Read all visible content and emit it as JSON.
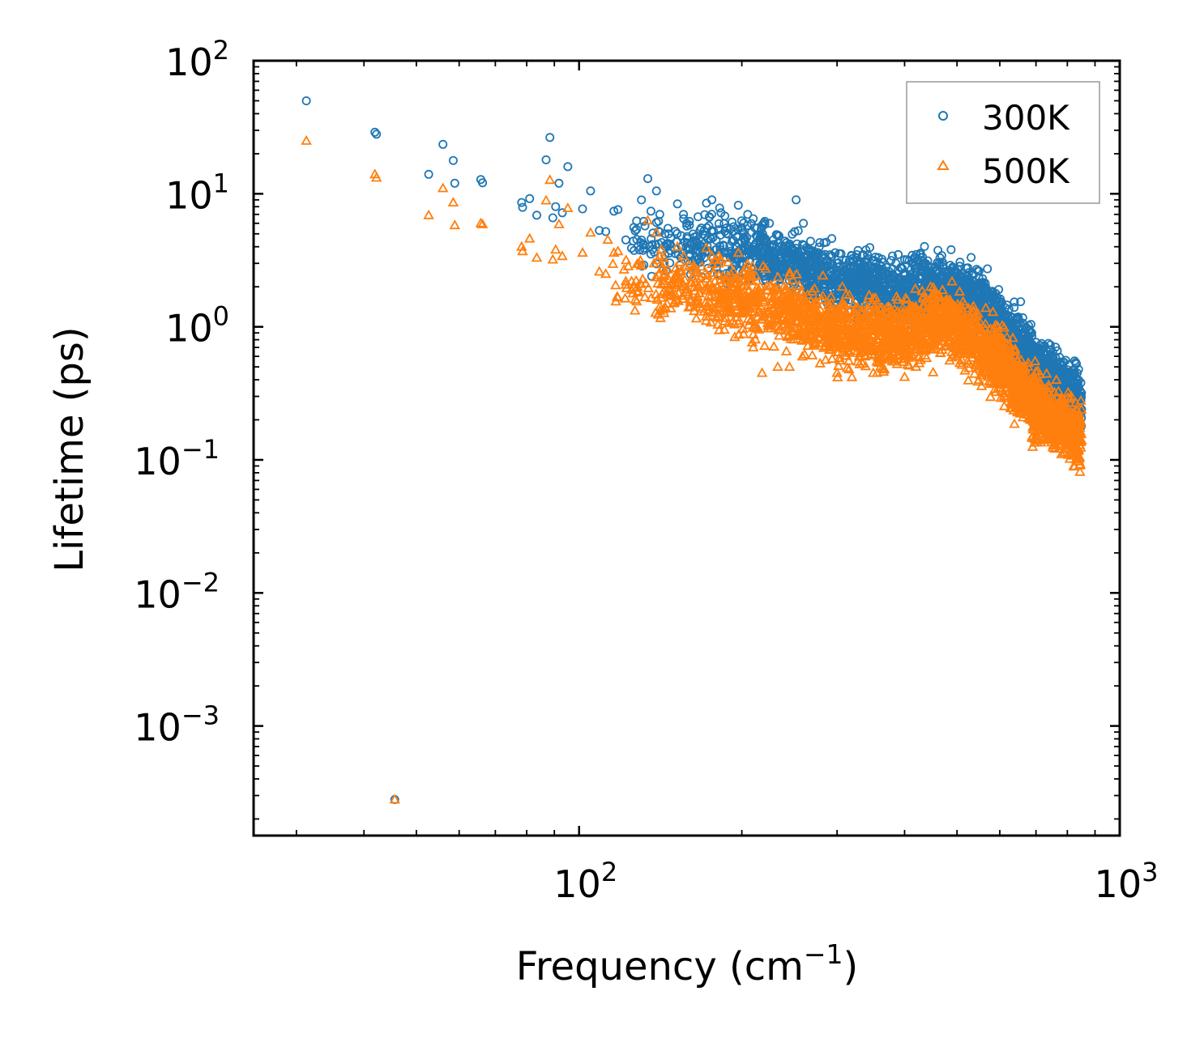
{
  "chart_data": {
    "type": "scatter",
    "xscale": "log",
    "yscale": "log",
    "xlabel": "Frequency (cm",
    "xlabel_sup": "−1",
    "xlabel_tail": ")",
    "ylabel": "Lifetime (ps)",
    "xlim": [
      25,
      1000
    ],
    "ylim": [
      0.00015,
      100
    ],
    "x_ticks": [
      {
        "value": 100,
        "base": "10",
        "exp": "2"
      },
      {
        "value": 1000,
        "base": "10",
        "exp": "3"
      }
    ],
    "y_ticks": [
      {
        "value": 100,
        "base": "10",
        "exp": "2"
      },
      {
        "value": 10,
        "base": "10",
        "exp": "1"
      },
      {
        "value": 1,
        "base": "10",
        "exp": "0"
      },
      {
        "value": 0.1,
        "base": "10",
        "exp": "−1"
      },
      {
        "value": 0.01,
        "base": "10",
        "exp": "−2"
      },
      {
        "value": 0.001,
        "base": "10",
        "exp": "−3"
      }
    ],
    "legend_position": "top-right",
    "series": [
      {
        "name": "300K",
        "color": "#1f77b4",
        "marker": "circle",
        "points": [
          [
            31.3,
            50
          ],
          [
            41.9,
            29
          ],
          [
            42.2,
            28
          ],
          [
            45.6,
            0.00028
          ],
          [
            52.7,
            14
          ],
          [
            56.0,
            23.5
          ],
          [
            58.5,
            17.8
          ],
          [
            58.9,
            12
          ],
          [
            65.8,
            12.8
          ],
          [
            66.3,
            12.1
          ],
          [
            78.3,
            8.6
          ],
          [
            78.6,
            7.9
          ],
          [
            81.0,
            9.2
          ],
          [
            83.5,
            6.9
          ],
          [
            86.9,
            18
          ],
          [
            88.3,
            26.5
          ],
          [
            89.4,
            6.6
          ],
          [
            90.5,
            8
          ],
          [
            91.8,
            12
          ],
          [
            93.1,
            7.2
          ],
          [
            95.3,
            16
          ],
          [
            101.5,
            7.7
          ],
          [
            105.0,
            10.5
          ],
          [
            109.0,
            5.3
          ],
          [
            112.0,
            5.2
          ],
          [
            116.0,
            7.4
          ],
          [
            118.0,
            7.6
          ],
          [
            122.0,
            4.5
          ],
          [
            125.0,
            3.9
          ],
          [
            130.0,
            4.3
          ],
          [
            134.0,
            13
          ],
          [
            139.0,
            10.5
          ],
          [
            141.0,
            7
          ],
          [
            146.0,
            5.5
          ],
          [
            152.0,
            8.4
          ],
          [
            156.0,
            7
          ],
          [
            160.0,
            6.2
          ],
          [
            165.0,
            4.8
          ],
          [
            172.0,
            8.5
          ],
          [
            176.0,
            9
          ],
          [
            183.0,
            7.2
          ],
          [
            186.0,
            6.8
          ],
          [
            193.0,
            5.2
          ],
          [
            197.0,
            8.2
          ],
          [
            205.0,
            7
          ],
          [
            210.0,
            6.5
          ],
          [
            218.0,
            5.8
          ],
          [
            225.0,
            6
          ],
          [
            233.0,
            4.9
          ],
          [
            245.0,
            4.2
          ],
          [
            252.0,
            9
          ],
          [
            260.0,
            6
          ],
          [
            268.0,
            4.4
          ],
          [
            285.0,
            3.5
          ],
          [
            300.0,
            3
          ],
          [
            315.0,
            2.6
          ],
          [
            330.0,
            3
          ],
          [
            350.0,
            2.6
          ],
          [
            370.0,
            2.8
          ],
          [
            400.0,
            3.2
          ],
          [
            420.0,
            2.6
          ],
          [
            430.0,
            2.9
          ],
          [
            465.0,
            3.3
          ],
          [
            480.0,
            2.3
          ],
          [
            520.0,
            2.4
          ],
          [
            560.0,
            1.8
          ],
          [
            600.0,
            1.3
          ],
          [
            620.0,
            1.0
          ],
          [
            650.0,
            0.8
          ],
          [
            680.0,
            0.62
          ],
          [
            690.0,
            0.19
          ],
          [
            720.0,
            0.45
          ],
          [
            760.0,
            0.35
          ],
          [
            800.0,
            0.3
          ],
          [
            830.0,
            0.27
          ],
          [
            850.0,
            0.24
          ]
        ]
      },
      {
        "name": "500K",
        "color": "#ff7f0e",
        "marker": "triangle",
        "points": [
          [
            31.3,
            25
          ],
          [
            41.9,
            14
          ],
          [
            42.2,
            13.2
          ],
          [
            45.6,
            0.00028
          ],
          [
            52.7,
            6.9
          ],
          [
            56.0,
            11
          ],
          [
            58.5,
            8.6
          ],
          [
            58.9,
            5.8
          ],
          [
            65.8,
            6
          ],
          [
            66.3,
            5.9
          ],
          [
            78.3,
            4
          ],
          [
            78.6,
            3.7
          ],
          [
            81.0,
            4.6
          ],
          [
            83.5,
            3.3
          ],
          [
            86.9,
            8.9
          ],
          [
            88.3,
            12.7
          ],
          [
            89.4,
            3.2
          ],
          [
            90.5,
            3.8
          ],
          [
            91.8,
            5.9
          ],
          [
            93.1,
            3.4
          ],
          [
            95.3,
            7.8
          ],
          [
            101.5,
            3.6
          ],
          [
            105.0,
            5.1
          ],
          [
            109.0,
            2.6
          ],
          [
            112.0,
            2.5
          ],
          [
            116.0,
            3.6
          ],
          [
            118.0,
            3.7
          ],
          [
            122.0,
            2.2
          ],
          [
            125.0,
            1.9
          ],
          [
            130.0,
            2.1
          ],
          [
            134.0,
            6.3
          ],
          [
            139.0,
            5.1
          ],
          [
            141.0,
            3.4
          ],
          [
            146.0,
            2.7
          ],
          [
            152.0,
            4
          ],
          [
            156.0,
            3.4
          ],
          [
            160.0,
            2.9
          ],
          [
            165.0,
            2.3
          ],
          [
            172.0,
            3.9
          ],
          [
            176.0,
            3.4
          ],
          [
            183.0,
            3.2
          ],
          [
            186.0,
            1.1
          ],
          [
            193.0,
            2.3
          ],
          [
            197.0,
            3.6
          ],
          [
            205.0,
            1.6
          ],
          [
            210.0,
            0.7
          ],
          [
            218.0,
            0.45
          ],
          [
            225.0,
            1.3
          ],
          [
            233.0,
            0.5
          ],
          [
            245.0,
            0.5
          ],
          [
            252.0,
            1.2
          ],
          [
            260.0,
            0.8
          ],
          [
            268.0,
            1
          ],
          [
            285.0,
            0.8
          ],
          [
            300.0,
            0.45
          ],
          [
            315.0,
            0.85
          ],
          [
            330.0,
            0.7
          ],
          [
            350.0,
            0.45
          ],
          [
            370.0,
            0.6
          ],
          [
            400.0,
            0.42
          ],
          [
            420.0,
            0.5
          ],
          [
            430.0,
            0.8
          ],
          [
            465.0,
            1.3
          ],
          [
            480.0,
            1.0
          ],
          [
            520.0,
            0.9
          ],
          [
            560.0,
            0.7
          ],
          [
            600.0,
            0.5
          ],
          [
            620.0,
            0.35
          ],
          [
            650.0,
            0.3
          ],
          [
            680.0,
            0.25
          ],
          [
            690.0,
            0.125
          ],
          [
            720.0,
            0.19
          ],
          [
            760.0,
            0.16
          ],
          [
            800.0,
            0.13
          ],
          [
            830.0,
            0.15
          ],
          [
            850.0,
            0.14
          ]
        ]
      }
    ],
    "dense_bands": [
      {
        "series": "300K",
        "x_range": [
          120,
          850
        ],
        "centers": [
          [
            120,
            4.8
          ],
          [
            160,
            4.0
          ],
          [
            220,
            3.5
          ],
          [
            300,
            2.2
          ],
          [
            380,
            1.9
          ],
          [
            470,
            2.0
          ],
          [
            550,
            1.6
          ],
          [
            620,
            0.95
          ],
          [
            700,
            0.5
          ],
          [
            850,
            0.26
          ]
        ],
        "spread_decades": 0.22
      },
      {
        "series": "500K",
        "x_range": [
          110,
          850
        ],
        "centers": [
          [
            110,
            2.4
          ],
          [
            160,
            1.8
          ],
          [
            220,
            1.5
          ],
          [
            300,
            0.95
          ],
          [
            380,
            0.85
          ],
          [
            470,
            1.1
          ],
          [
            530,
            0.8
          ],
          [
            600,
            0.55
          ],
          [
            700,
            0.25
          ],
          [
            850,
            0.14
          ]
        ],
        "spread_decades": 0.24
      }
    ]
  }
}
